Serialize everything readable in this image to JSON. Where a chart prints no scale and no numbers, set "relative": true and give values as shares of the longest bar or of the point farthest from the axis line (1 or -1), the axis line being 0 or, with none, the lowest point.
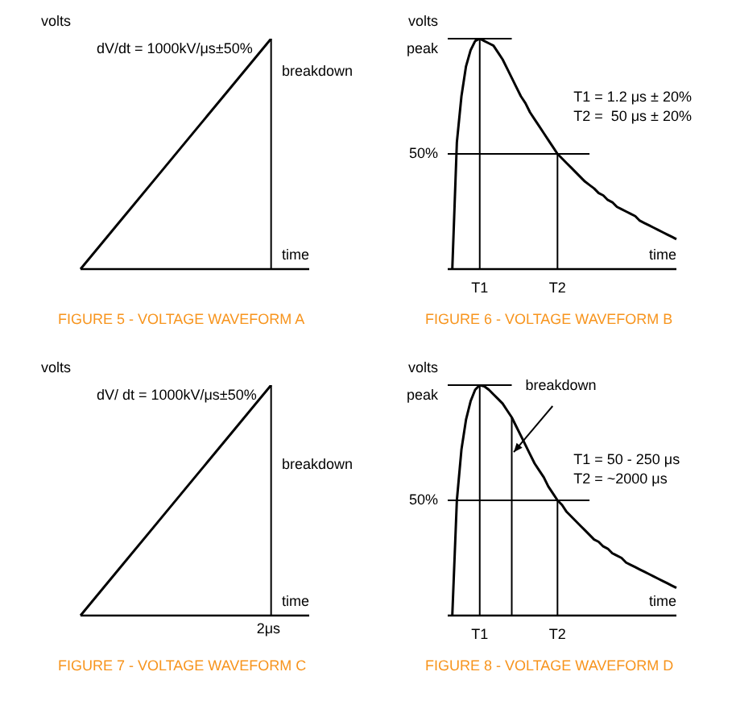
{
  "chart_data": [
    {
      "type": "line",
      "title": "FIGURE 5 - VOLTAGE WAVEFORM A",
      "xlabel": "time",
      "ylabel": "volts",
      "relative": true,
      "categories": [
        null,
        null,
        null,
        null,
        null,
        null,
        null
      ],
      "values": [
        0,
        0.2,
        0.4,
        0.6,
        0.8,
        1,
        null
      ],
      "color": "#000000",
      "annotations": [
        "dV/dt = 1000kV/μs±50%",
        "breakdown"
      ]
    },
    {
      "type": "line",
      "title": "FIGURE 6 - VOLTAGE WAVEFORM B",
      "xlabel": "time",
      "ylabel": "volts",
      "relative": true,
      "categories": [
        null,
        null,
        null,
        null,
        null,
        null,
        null,
        "T1",
        null,
        null,
        null,
        null,
        null,
        null,
        null,
        null,
        null,
        null,
        null,
        null,
        null,
        null,
        null,
        null,
        "T2",
        null,
        null,
        null,
        null,
        null,
        null,
        null,
        null,
        null,
        null,
        null,
        null,
        null,
        null,
        null,
        null,
        null,
        null,
        null,
        null,
        null,
        null,
        null,
        null,
        null,
        null
      ],
      "values": [
        null,
        0,
        0.55,
        0.75,
        0.88,
        0.95,
        0.99,
        1,
        0.99,
        0.98,
        0.97,
        0.94,
        0.91,
        0.87,
        0.83,
        0.79,
        0.75,
        0.72,
        0.68,
        0.65,
        0.62,
        0.59,
        0.56,
        0.53,
        0.5,
        0.48,
        0.46,
        0.44,
        0.42,
        0.4,
        0.38,
        0.365,
        0.35,
        0.33,
        0.32,
        0.3,
        0.29,
        0.27,
        0.26,
        0.25,
        0.24,
        0.23,
        0.21,
        0.2,
        0.19,
        0.18,
        0.17,
        0.16,
        0.15,
        0.14,
        0.13
      ],
      "color": "#000000",
      "annotations": [
        "T1 = 1.2 μs ± 20%",
        "T2 =  50 μs ± 20%"
      ],
      "ref_lines": [
        {
          "axis": "y",
          "value": 1,
          "label": "peak"
        },
        {
          "axis": "y",
          "value": 0.5,
          "label": "50%"
        }
      ]
    },
    {
      "type": "line",
      "title": "FIGURE 7 - VOLTAGE WAVEFORM C",
      "xlabel": "time",
      "ylabel": "volts",
      "relative": true,
      "categories": [
        null,
        null,
        null,
        null,
        null,
        null,
        null
      ],
      "values": [
        0,
        0.2,
        0.4,
        0.6,
        0.8,
        1,
        null
      ],
      "color": "#000000",
      "annotations": [
        "dV/ dt = 1000kV/μs±50%",
        "breakdown",
        "2μs"
      ]
    },
    {
      "type": "line",
      "title": "FIGURE 8 - VOLTAGE WAVEFORM D",
      "xlabel": "time",
      "ylabel": "volts",
      "relative": true,
      "categories": [
        null,
        null,
        null,
        null,
        null,
        null,
        null,
        "T1",
        null,
        null,
        null,
        null,
        null,
        null,
        null,
        null,
        null,
        null,
        null,
        null,
        null,
        null,
        null,
        null,
        "T2",
        null,
        null,
        null,
        null,
        null,
        null,
        null,
        null,
        null,
        null,
        null,
        null,
        null,
        null,
        null,
        null,
        null,
        null,
        null,
        null,
        null,
        null,
        null,
        null,
        null,
        null
      ],
      "values": [
        null,
        0,
        0.5,
        0.72,
        0.85,
        0.93,
        0.98,
        1,
        0.995,
        0.98,
        0.96,
        0.94,
        0.92,
        0.89,
        0.86,
        0.82,
        0.78,
        0.74,
        0.7,
        0.66,
        0.63,
        0.6,
        0.56,
        0.53,
        0.5,
        0.48,
        0.45,
        0.43,
        0.41,
        0.39,
        0.37,
        0.35,
        0.33,
        0.32,
        0.3,
        0.29,
        0.27,
        0.26,
        0.25,
        0.23,
        0.22,
        0.21,
        0.2,
        0.19,
        0.18,
        0.17,
        0.16,
        0.15,
        0.14,
        0.13,
        0.12
      ],
      "color": "#000000",
      "annotations": [
        "T1 = 50 - 250 μs",
        "T2 = ~2000 μs",
        "breakdown"
      ],
      "ref_lines": [
        {
          "axis": "y",
          "value": 1,
          "label": "peak"
        },
        {
          "axis": "y",
          "value": 0.5,
          "label": "50%"
        }
      ]
    }
  ]
}
